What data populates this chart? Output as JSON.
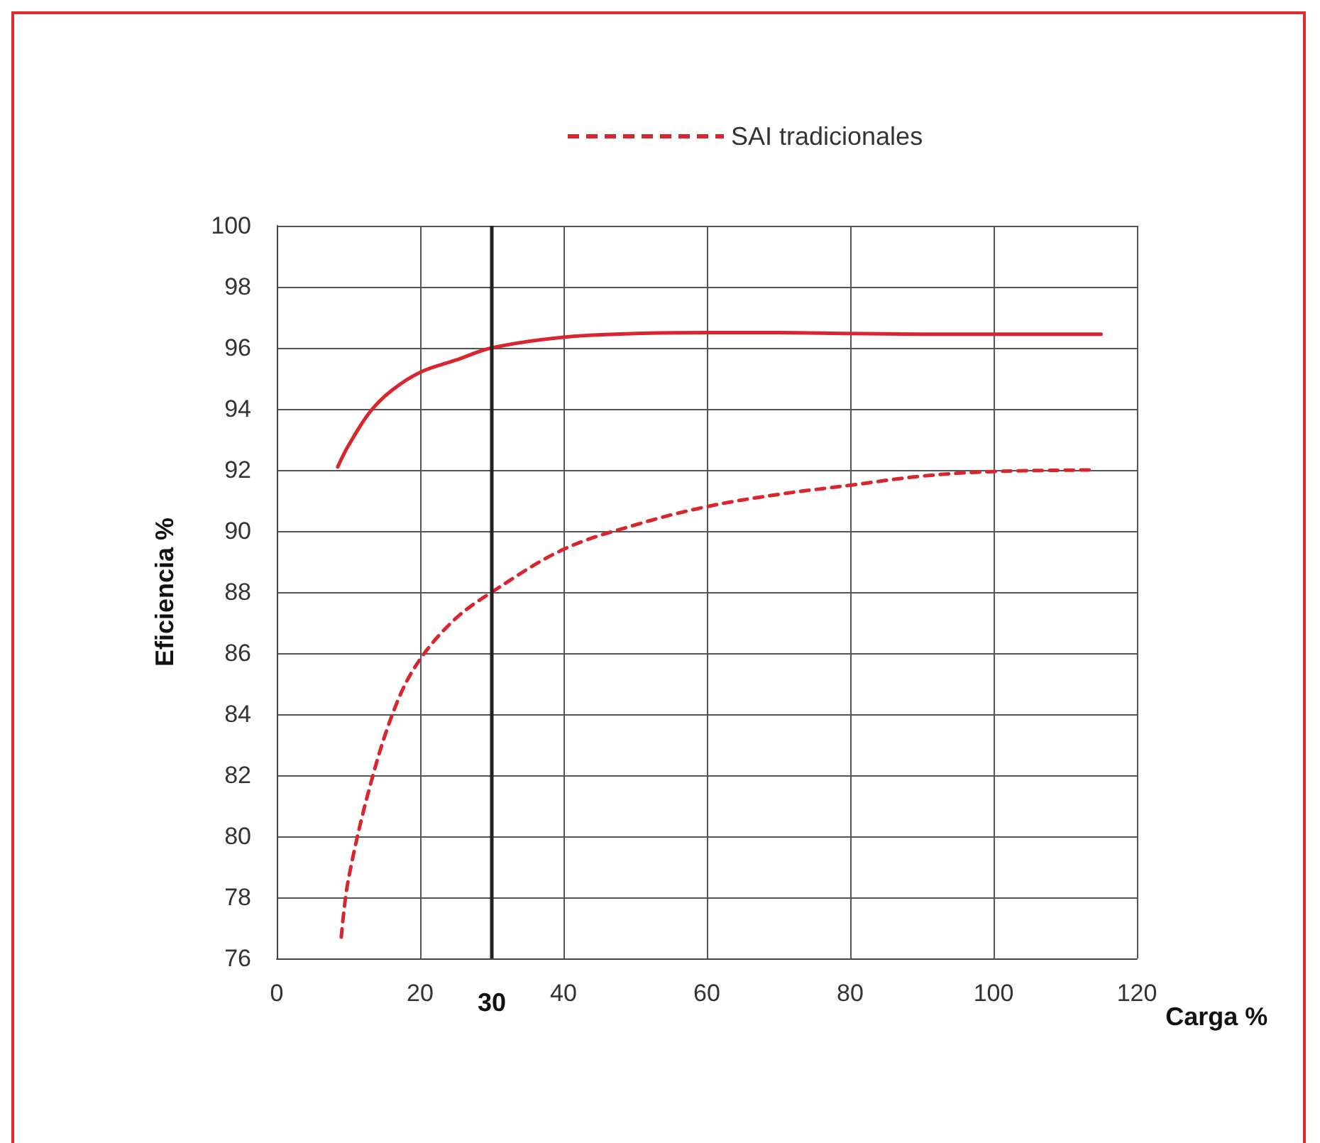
{
  "chart_data": {
    "type": "line",
    "xlabel": "Carga %",
    "ylabel": "Eficiencia %",
    "xlim": [
      0,
      120
    ],
    "xticks": [
      0,
      20,
      40,
      60,
      80,
      100,
      120
    ],
    "ylim": [
      76,
      100
    ],
    "yticks": [
      76,
      78,
      80,
      82,
      84,
      86,
      88,
      90,
      92,
      94,
      96,
      98,
      100
    ],
    "grid": true,
    "legend": "top",
    "marker": "none",
    "series": [
      {
        "color": "#d9262e",
        "line_style": "solid",
        "x": [
          8.5,
          10,
          13,
          16,
          20,
          25,
          30,
          40,
          50,
          60,
          70,
          80,
          90,
          100,
          115
        ],
        "values": [
          92.1,
          92.8,
          93.9,
          94.6,
          95.2,
          95.6,
          96.0,
          96.35,
          96.47,
          96.5,
          96.5,
          96.47,
          96.45,
          96.45,
          96.45
        ]
      },
      {
        "name": "SAI tradicionales",
        "color": "#d9262e",
        "line_style": "dashed",
        "x": [
          9,
          10,
          13.3,
          16.8,
          20,
          24.8,
          30,
          40,
          50,
          60,
          70,
          80,
          90,
          100,
          114
        ],
        "values": [
          76.7,
          78.6,
          81.9,
          84.4,
          85.8,
          87.1,
          88.0,
          89.4,
          90.2,
          90.8,
          91.2,
          91.5,
          91.8,
          91.95,
          92.0
        ]
      }
    ],
    "ref_lines": [
      {
        "axis": "x",
        "value": 30,
        "label": "30",
        "color": "#222222"
      }
    ]
  }
}
